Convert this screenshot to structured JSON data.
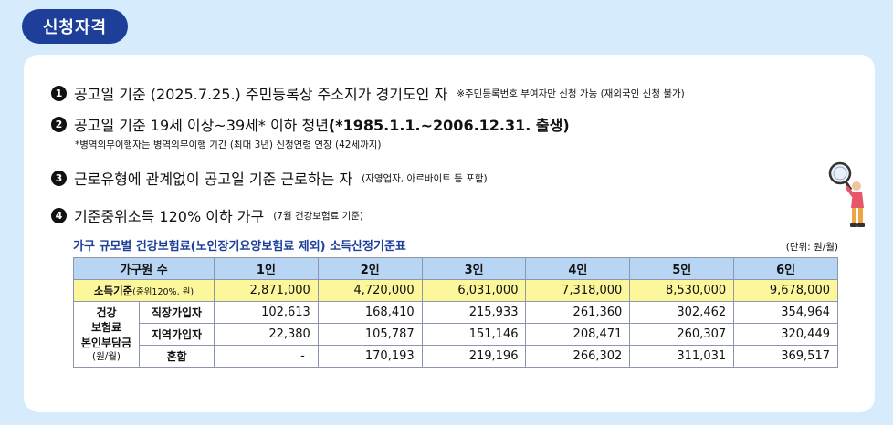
{
  "badge": "신청자격",
  "items": [
    {
      "num": "1",
      "main": "공고일 기준 (2025.7.25.) 주민등록상 주소지가 경기도인 자",
      "note": "※주민등록번호 부여자만 신청 가능 (재외국인 신청 불가)"
    },
    {
      "num": "2",
      "main_a": "공고일 기준 19세 이상~39세* 이하 청년 ",
      "main_b": "(*1985.1.1.~2006.12.31. 출생)",
      "sub": "*병역의무이행자는 병역의무이행 기간 (최대 3년) 신청연령 연장 (42세까지)"
    },
    {
      "num": "3",
      "main": "근로유형에 관계없이 공고일 기준 근로하는 자",
      "note": "(자영업자, 아르바이트 등 포함)"
    },
    {
      "num": "4",
      "main": "기준중위소득 120% 이하 가구",
      "note": "(7월 건강보험료 기준)"
    }
  ],
  "table": {
    "title": "가구 규모별 건강보험료(노인장기요양보험료 제외) 소득산정기준표",
    "unit": "(단위: 원/월)",
    "header": {
      "label": "가구원 수",
      "cols": [
        "1인",
        "2인",
        "3인",
        "4인",
        "5인",
        "6인"
      ]
    },
    "income": {
      "label": "소득기준",
      "label_small": "(중위120%, 원)",
      "values": [
        "2,871,000",
        "4,720,000",
        "6,031,000",
        "7,318,000",
        "8,530,000",
        "9,678,000"
      ]
    },
    "group": {
      "line1": "건강",
      "line2": "보험료",
      "line3": "본인부담금",
      "line4": "(원/월)"
    },
    "rows": [
      {
        "type": "직장가입자",
        "values": [
          "102,613",
          "168,410",
          "215,933",
          "261,360",
          "302,462",
          "354,964"
        ]
      },
      {
        "type": "지역가입자",
        "values": [
          "22,380",
          "105,787",
          "151,146",
          "208,471",
          "260,307",
          "320,449"
        ]
      },
      {
        "type": "혼합",
        "values": [
          "-",
          "170,193",
          "219,196",
          "266,302",
          "311,031",
          "369,517"
        ]
      }
    ]
  },
  "colors": {
    "badge": "#1d3f9a",
    "background": "#d6ebfb",
    "header": "#b8d6f4",
    "income": "#fcf79a"
  },
  "illustration": "person-with-magnifier-icon"
}
